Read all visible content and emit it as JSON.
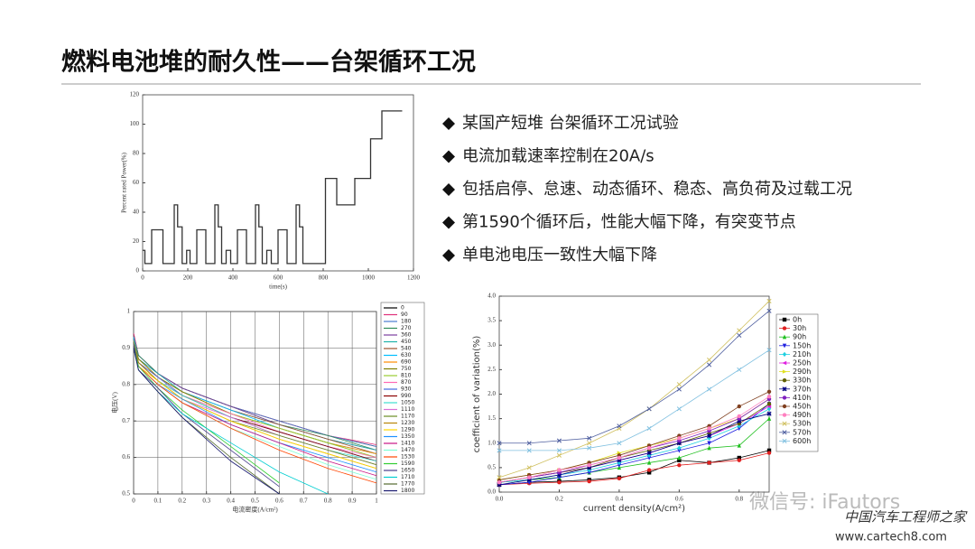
{
  "title": "燃料电池堆的耐久性——台架循环工况",
  "bullets": [
    "某国产短堆 台架循环工况试验",
    "电流加载速率控制在20A/s",
    "包括启停、怠速、动态循环、稳态、高负荷及过载工况",
    "第1590个循环后，性能大幅下降，有突变节点",
    "单电池电压一致性大幅下降"
  ],
  "watermark": [
    "微信号: iFautors",
    "中国汽车工程师之家",
    "www.cartech8.com"
  ],
  "chart_data": [
    {
      "type": "line",
      "step": true,
      "xlabel": "time(s)",
      "ylabel": "Percent rated Power(%)",
      "xlim": [
        0,
        1200
      ],
      "xticks": [
        0,
        200,
        400,
        600,
        800,
        1000,
        1200
      ],
      "ylim": [
        0,
        120
      ],
      "yticks": [
        0,
        20,
        40,
        60,
        80,
        100,
        120
      ],
      "x": [
        0,
        10,
        40,
        90,
        140,
        155,
        175,
        195,
        210,
        240,
        280,
        320,
        335,
        350,
        370,
        390,
        420,
        460,
        500,
        515,
        530,
        550,
        570,
        600,
        640,
        680,
        695,
        710,
        810,
        860,
        940,
        1010,
        1060,
        1150
      ],
      "series": [
        {
          "color": "#333333",
          "values": [
            14,
            5,
            28,
            5,
            45,
            30,
            5,
            14,
            5,
            28,
            5,
            45,
            30,
            5,
            14,
            5,
            28,
            5,
            45,
            30,
            5,
            14,
            5,
            28,
            5,
            45,
            30,
            5,
            63,
            45,
            63,
            90,
            109,
            109
          ]
        }
      ]
    },
    {
      "type": "line",
      "xlabel": "电流密度(A/cm²)",
      "ylabel": "电压(V)",
      "xlim": [
        0,
        1
      ],
      "xticks": [
        0,
        0.1,
        0.2,
        0.3,
        0.4,
        0.5,
        0.6,
        0.7,
        0.8,
        0.9,
        1
      ],
      "ylim": [
        0.5,
        1
      ],
      "yticks": [
        0.5,
        0.6,
        0.7,
        0.8,
        0.9,
        1
      ],
      "grid": true,
      "x": [
        0,
        0.02,
        0.1,
        0.2,
        0.4,
        0.6,
        0.8,
        1
      ],
      "series": [
        {
          "name": "0",
          "color": "#000000",
          "values": [
            0.94,
            0.88,
            0.83,
            0.79,
            0.74,
            0.7,
            0.66,
            0.63
          ]
        },
        {
          "name": "90",
          "color": "#e0307a",
          "values": [
            0.94,
            0.88,
            0.83,
            0.79,
            0.74,
            0.7,
            0.66,
            0.635
          ]
        },
        {
          "name": "180",
          "color": "#4a7bd0",
          "values": [
            0.93,
            0.88,
            0.83,
            0.79,
            0.74,
            0.7,
            0.66,
            0.63
          ]
        },
        {
          "name": "270",
          "color": "#2e8b57",
          "values": [
            0.93,
            0.88,
            0.83,
            0.79,
            0.74,
            0.69,
            0.66,
            0.62
          ]
        },
        {
          "name": "360",
          "color": "#7b3fa0",
          "values": [
            0.93,
            0.87,
            0.83,
            0.79,
            0.74,
            0.69,
            0.65,
            0.62
          ]
        },
        {
          "name": "450",
          "color": "#20b2aa",
          "values": [
            0.93,
            0.87,
            0.83,
            0.78,
            0.73,
            0.69,
            0.65,
            0.62
          ]
        },
        {
          "name": "540",
          "color": "#a0522d",
          "values": [
            0.93,
            0.87,
            0.82,
            0.78,
            0.73,
            0.69,
            0.65,
            0.61
          ]
        },
        {
          "name": "630",
          "color": "#00bfff",
          "values": [
            0.93,
            0.87,
            0.82,
            0.78,
            0.73,
            0.68,
            0.64,
            0.61
          ]
        },
        {
          "name": "690",
          "color": "#ff8c00",
          "values": [
            0.92,
            0.87,
            0.82,
            0.78,
            0.72,
            0.68,
            0.64,
            0.61
          ]
        },
        {
          "name": "750",
          "color": "#808000",
          "values": [
            0.92,
            0.87,
            0.82,
            0.78,
            0.72,
            0.68,
            0.64,
            0.6
          ]
        },
        {
          "name": "810",
          "color": "#9acd32",
          "values": [
            0.92,
            0.86,
            0.82,
            0.77,
            0.72,
            0.68,
            0.64,
            0.6
          ]
        },
        {
          "name": "870",
          "color": "#ff69b4",
          "values": [
            0.92,
            0.86,
            0.82,
            0.77,
            0.72,
            0.67,
            0.63,
            0.6
          ]
        },
        {
          "name": "930",
          "color": "#4169e1",
          "values": [
            0.92,
            0.86,
            0.82,
            0.77,
            0.71,
            0.67,
            0.63,
            0.59
          ]
        },
        {
          "name": "990",
          "color": "#8b0000",
          "values": [
            0.92,
            0.86,
            0.81,
            0.77,
            0.71,
            0.67,
            0.63,
            0.59
          ]
        },
        {
          "name": "1050",
          "color": "#40e0d0",
          "values": [
            0.92,
            0.86,
            0.81,
            0.77,
            0.71,
            0.66,
            0.62,
            0.59
          ]
        },
        {
          "name": "1110",
          "color": "#da70d6",
          "values": [
            0.92,
            0.86,
            0.81,
            0.76,
            0.71,
            0.66,
            0.62,
            0.58
          ]
        },
        {
          "name": "1170",
          "color": "#6b8e23",
          "values": [
            0.92,
            0.86,
            0.81,
            0.76,
            0.7,
            0.66,
            0.62,
            0.58
          ]
        },
        {
          "name": "1230",
          "color": "#b8860b",
          "values": [
            0.91,
            0.86,
            0.81,
            0.76,
            0.7,
            0.65,
            0.61,
            0.57
          ]
        },
        {
          "name": "1290",
          "color": "#ffd700",
          "values": [
            0.91,
            0.85,
            0.81,
            0.76,
            0.7,
            0.65,
            0.61,
            0.57
          ]
        },
        {
          "name": "1350",
          "color": "#1e90ff",
          "values": [
            0.91,
            0.85,
            0.8,
            0.76,
            0.69,
            0.64,
            0.6,
            0.56
          ]
        },
        {
          "name": "1410",
          "color": "#c71585",
          "values": [
            0.91,
            0.85,
            0.8,
            0.75,
            0.69,
            0.64,
            0.59,
            0.55
          ]
        },
        {
          "name": "1470",
          "color": "#7fffd4",
          "values": [
            0.91,
            0.85,
            0.8,
            0.75,
            0.68,
            0.63,
            0.58,
            0.54
          ]
        },
        {
          "name": "1530",
          "color": "#ff4500",
          "values": [
            0.91,
            0.85,
            0.8,
            0.75,
            0.68,
            0.62,
            0.57,
            0.53
          ]
        },
        {
          "name": "1590",
          "color": "#32cd32",
          "values": [
            0.91,
            0.85,
            0.79,
            0.73,
            0.63,
            0.53,
            null,
            null
          ]
        },
        {
          "name": "1650",
          "color": "#483d8b",
          "values": [
            0.91,
            0.84,
            0.79,
            0.72,
            0.62,
            0.52,
            null,
            null
          ]
        },
        {
          "name": "1710",
          "color": "#00ced1",
          "values": [
            0.9,
            0.84,
            0.78,
            0.72,
            0.64,
            0.56,
            0.5,
            null
          ]
        },
        {
          "name": "1770",
          "color": "#556b2f",
          "values": [
            0.9,
            0.84,
            0.78,
            0.71,
            0.6,
            0.5,
            null,
            null
          ]
        },
        {
          "name": "1800",
          "color": "#191970",
          "values": [
            0.9,
            0.84,
            0.78,
            0.71,
            0.59,
            0.5,
            null,
            null
          ]
        }
      ]
    },
    {
      "type": "line",
      "markers": true,
      "xlabel": "current density(A/cm²)",
      "ylabel": "coefficient of variation(%)",
      "xlim": [
        0,
        0.9
      ],
      "xticks": [
        {
          "value": 0,
          "label": "0.0"
        },
        0.2,
        0.4,
        0.6,
        0.8
      ],
      "ylim": [
        0,
        4
      ],
      "yticks": [
        {
          "value": 0,
          "label": "0.0"
        },
        0.5,
        {
          "value": 1,
          "label": "1.0"
        },
        1.5,
        {
          "value": 2,
          "label": "2.0"
        },
        2.5,
        {
          "value": 3,
          "label": "3.0"
        },
        3.5,
        {
          "value": 4,
          "label": "4.0"
        }
      ],
      "x": [
        0,
        0.1,
        0.2,
        0.3,
        0.4,
        0.5,
        0.6,
        0.7,
        0.8,
        0.9
      ],
      "series": [
        {
          "name": "0h",
          "color": "#000000",
          "marker": "square",
          "values": [
            0.15,
            0.2,
            0.22,
            0.25,
            0.3,
            0.4,
            0.65,
            0.6,
            0.7,
            0.85
          ]
        },
        {
          "name": "30h",
          "color": "#e02020",
          "marker": "circle",
          "values": [
            0.15,
            0.18,
            0.2,
            0.22,
            0.28,
            0.45,
            0.55,
            0.6,
            0.65,
            0.8
          ]
        },
        {
          "name": "90h",
          "color": "#20c020",
          "marker": "triangle",
          "values": [
            0.2,
            0.25,
            0.3,
            0.4,
            0.5,
            0.6,
            0.7,
            0.9,
            0.95,
            1.5
          ]
        },
        {
          "name": "150h",
          "color": "#2020e0",
          "marker": "tri-down",
          "values": [
            0.15,
            0.2,
            0.3,
            0.4,
            0.55,
            0.7,
            0.85,
            1.0,
            1.3,
            1.8
          ]
        },
        {
          "name": "210h",
          "color": "#20d0e0",
          "marker": "diamond",
          "values": [
            0.2,
            0.25,
            0.35,
            0.45,
            0.6,
            0.75,
            0.9,
            1.1,
            1.35,
            1.7
          ]
        },
        {
          "name": "250h",
          "color": "#e020e0",
          "marker": "tri-left",
          "values": [
            0.2,
            0.3,
            0.4,
            0.5,
            0.65,
            0.8,
            1.0,
            1.15,
            1.4,
            1.75
          ]
        },
        {
          "name": "290h",
          "color": "#e0e020",
          "marker": "tri-right",
          "values": [
            0.25,
            0.35,
            0.45,
            0.6,
            0.8,
            0.95,
            1.1,
            1.3,
            1.5,
            1.9
          ]
        },
        {
          "name": "330h",
          "color": "#606000",
          "marker": "circle",
          "values": [
            0.2,
            0.3,
            0.4,
            0.5,
            0.7,
            0.85,
            1.0,
            1.2,
            1.4,
            1.8
          ]
        },
        {
          "name": "370h",
          "color": "#000080",
          "marker": "star",
          "values": [
            0.15,
            0.25,
            0.35,
            0.5,
            0.65,
            0.8,
            1.0,
            1.15,
            1.45,
            1.6
          ]
        },
        {
          "name": "410h",
          "color": "#8020c0",
          "marker": "circle",
          "values": [
            0.2,
            0.3,
            0.4,
            0.55,
            0.7,
            0.9,
            1.05,
            1.25,
            1.5,
            1.9
          ]
        },
        {
          "name": "450h",
          "color": "#804020",
          "marker": "circle",
          "values": [
            0.25,
            0.35,
            0.45,
            0.6,
            0.75,
            0.95,
            1.15,
            1.35,
            1.75,
            2.05
          ]
        },
        {
          "name": "490h",
          "color": "#ff80c0",
          "marker": "circle",
          "values": [
            0.2,
            0.3,
            0.45,
            0.55,
            0.7,
            0.9,
            1.1,
            1.3,
            1.55,
            1.95
          ]
        },
        {
          "name": "530h",
          "color": "#d0c060",
          "marker": "x",
          "values": [
            0.3,
            0.5,
            0.75,
            1.0,
            1.3,
            1.7,
            2.2,
            2.7,
            3.3,
            3.9
          ]
        },
        {
          "name": "570h",
          "color": "#5060a0",
          "marker": "x",
          "values": [
            1.0,
            1.0,
            1.05,
            1.1,
            1.35,
            1.7,
            2.1,
            2.6,
            3.2,
            3.7
          ]
        },
        {
          "name": "600h",
          "color": "#80c0e0",
          "marker": "x",
          "values": [
            0.85,
            0.85,
            0.85,
            0.9,
            1.0,
            1.3,
            1.7,
            2.1,
            2.5,
            2.9
          ]
        }
      ]
    }
  ]
}
